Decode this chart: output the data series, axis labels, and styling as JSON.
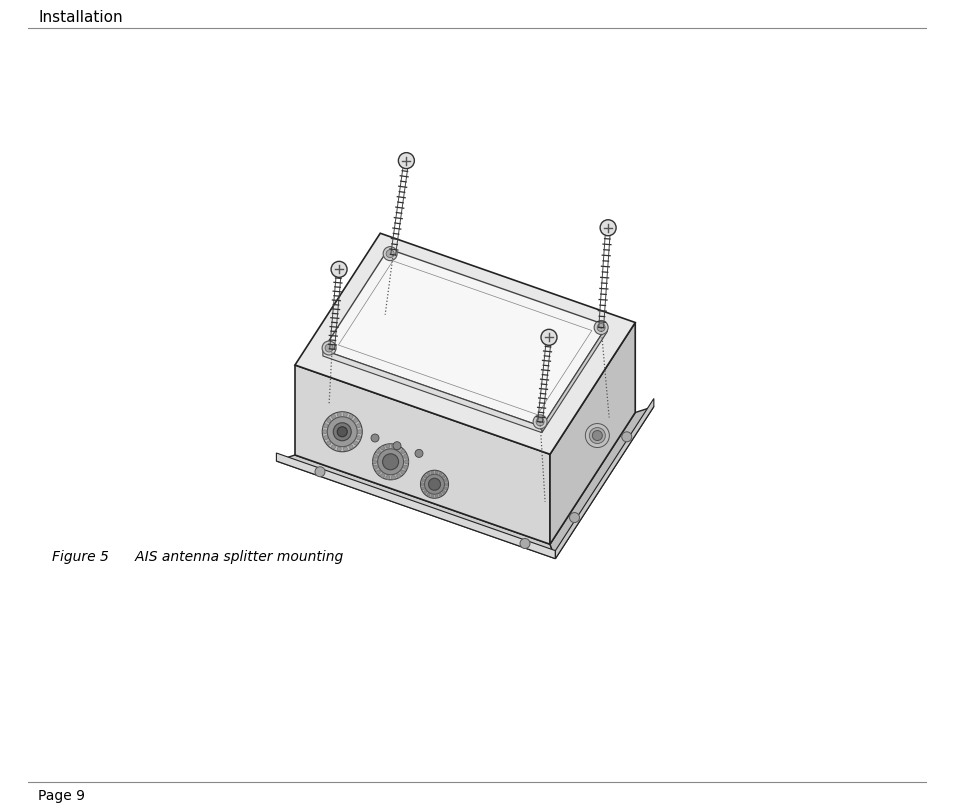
{
  "header_text": "Installation",
  "figure_caption": "Figure 5      AIS antenna splitter mounting",
  "footer_text": "Page 9",
  "bg_color": "#ffffff",
  "text_color": "#000000",
  "line_color": "#333333",
  "edge_color": "#222222",
  "light_gray": "#f0f0f0",
  "mid_gray": "#d8d8d8",
  "dark_gray": "#b0b0b0",
  "header_fontsize": 11,
  "caption_fontsize": 10,
  "footer_fontsize": 10,
  "fig_width": 9.54,
  "fig_height": 8.1
}
